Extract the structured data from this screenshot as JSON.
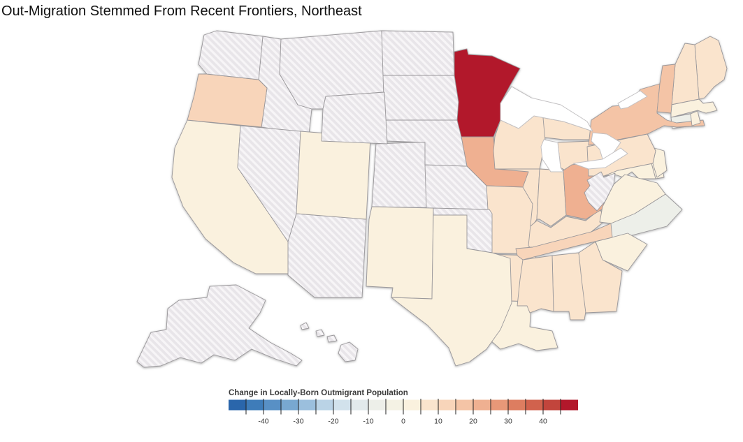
{
  "chart_data": {
    "type": "choropleth",
    "title": "Out-Migration Stemmed From Recent Frontiers, Northeast",
    "region": "USA states",
    "legend": {
      "title": "Change in Locally-Born Outmigrant Population",
      "domain": [
        -50,
        50
      ],
      "segment_size": 5,
      "colors": [
        "#2a66ab",
        "#3e7cb9",
        "#5890c5",
        "#78a8d1",
        "#9bbfdd",
        "#bad3e6",
        "#d2e2ec",
        "#e2eaec",
        "#edefe9",
        "#f4f2e4",
        "#faf1de",
        "#fae4cd",
        "#f8d5ba",
        "#f4c4a6",
        "#efb091",
        "#e79878",
        "#dd7d60",
        "#d1624d",
        "#c2453c",
        "#b2182b"
      ],
      "tick_values": [
        -40,
        -30,
        -20,
        -10,
        0,
        10,
        20,
        30,
        40
      ],
      "tick_labels": [
        "-40",
        "-30",
        "-20",
        "-10",
        "0",
        "10",
        "20",
        "30",
        "40"
      ],
      "minor_tick_step": 5,
      "no_data_style": "hatched",
      "hatch_base_color": "#e8e5e9",
      "hatch_stripe_color": "#f7f5f7",
      "state_border_color": "#9a989b"
    },
    "states": [
      {
        "code": "AL",
        "name": "Alabama",
        "value": 9
      },
      {
        "code": "AK",
        "name": "Alaska",
        "value": null
      },
      {
        "code": "AZ",
        "name": "Arizona",
        "value": null
      },
      {
        "code": "AR",
        "name": "Arkansas",
        "value": 9
      },
      {
        "code": "CA",
        "name": "California",
        "value": 3
      },
      {
        "code": "CO",
        "name": "Colorado",
        "value": null
      },
      {
        "code": "CT",
        "name": "Connecticut",
        "value": -6
      },
      {
        "code": "DE",
        "name": "Delaware",
        "value": 2
      },
      {
        "code": "FL",
        "name": "Florida",
        "value": 4
      },
      {
        "code": "GA",
        "name": "Georgia",
        "value": 7
      },
      {
        "code": "HI",
        "name": "Hawaii",
        "value": null
      },
      {
        "code": "ID",
        "name": "Idaho",
        "value": null
      },
      {
        "code": "IL",
        "name": "Illinois",
        "value": 8
      },
      {
        "code": "IN",
        "name": "Indiana",
        "value": 8
      },
      {
        "code": "IA",
        "name": "Iowa",
        "value": 22
      },
      {
        "code": "KS",
        "name": "Kansas",
        "value": null
      },
      {
        "code": "KY",
        "name": "Kentucky",
        "value": 7
      },
      {
        "code": "LA",
        "name": "Louisiana",
        "value": 4
      },
      {
        "code": "ME",
        "name": "Maine",
        "value": 7
      },
      {
        "code": "MD",
        "name": "Maryland",
        "value": 2
      },
      {
        "code": "MA",
        "name": "Massachusetts",
        "value": 2
      },
      {
        "code": "MI",
        "name": "Michigan",
        "value": 7
      },
      {
        "code": "MN",
        "name": "Minnesota",
        "value": 48
      },
      {
        "code": "MS",
        "name": "Mississippi",
        "value": 9
      },
      {
        "code": "MO",
        "name": "Missouri",
        "value": 7
      },
      {
        "code": "MT",
        "name": "Montana",
        "value": null
      },
      {
        "code": "NE",
        "name": "Nebraska",
        "value": null
      },
      {
        "code": "NV",
        "name": "Nevada",
        "value": null
      },
      {
        "code": "NH",
        "name": "New Hampshire",
        "value": 6
      },
      {
        "code": "NJ",
        "name": "New Jersey",
        "value": 3
      },
      {
        "code": "NM",
        "name": "New Mexico",
        "value": 3
      },
      {
        "code": "NY",
        "name": "New York",
        "value": 17
      },
      {
        "code": "NC",
        "name": "North Carolina",
        "value": -6
      },
      {
        "code": "ND",
        "name": "North Dakota",
        "value": null
      },
      {
        "code": "OH",
        "name": "Ohio",
        "value": 20
      },
      {
        "code": "OK",
        "name": "Oklahoma",
        "value": null
      },
      {
        "code": "OR",
        "name": "Oregon",
        "value": 13
      },
      {
        "code": "PA",
        "name": "Pennsylvania",
        "value": 6
      },
      {
        "code": "RI",
        "name": "Rhode Island",
        "value": 2
      },
      {
        "code": "SC",
        "name": "South Carolina",
        "value": 3
      },
      {
        "code": "SD",
        "name": "South Dakota",
        "value": null
      },
      {
        "code": "TN",
        "name": "Tennessee",
        "value": 14
      },
      {
        "code": "TX",
        "name": "Texas",
        "value": 4
      },
      {
        "code": "UT",
        "name": "Utah",
        "value": 3
      },
      {
        "code": "VT",
        "name": "Vermont",
        "value": 16
      },
      {
        "code": "VA",
        "name": "Virginia",
        "value": 1
      },
      {
        "code": "WA",
        "name": "Washington",
        "value": null
      },
      {
        "code": "WV",
        "name": "West Virginia",
        "value": null
      },
      {
        "code": "WI",
        "name": "Wisconsin",
        "value": 7
      },
      {
        "code": "WY",
        "name": "Wyoming",
        "value": null
      }
    ]
  }
}
